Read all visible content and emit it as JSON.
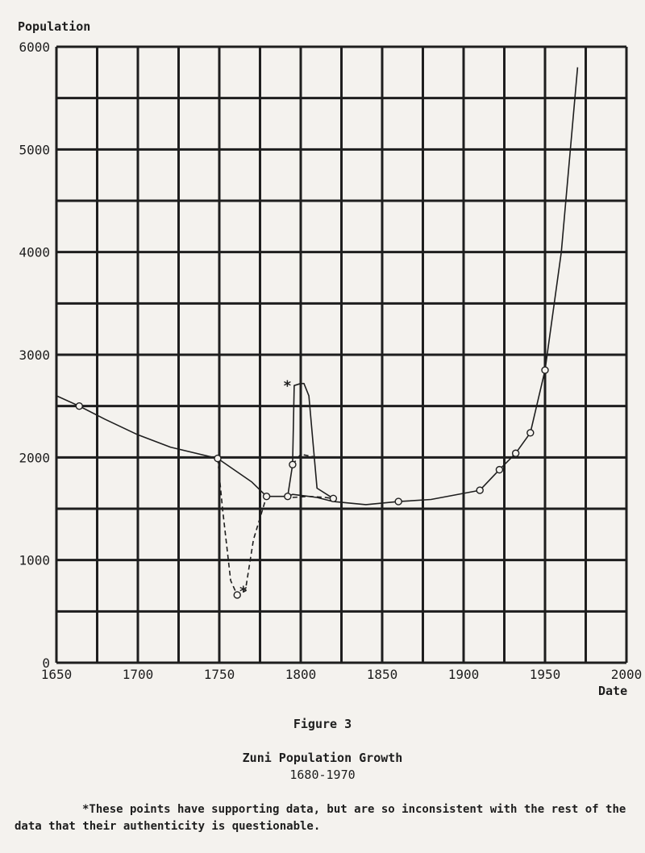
{
  "chart_data": {
    "type": "line",
    "xlabel": "Date",
    "ylabel": "Population",
    "xlim": [
      1650,
      2000
    ],
    "ylim": [
      0,
      6000
    ],
    "x_ticks": [
      1650,
      1700,
      1750,
      1800,
      1850,
      1900,
      1950,
      2000
    ],
    "x_tick_labels": [
      "1650",
      "1700",
      "1750",
      "1800",
      "1850",
      "1900",
      "1950",
      "2000"
    ],
    "y_ticks": [
      0,
      1000,
      2000,
      3000,
      4000,
      5000,
      6000
    ],
    "y_tick_labels": [
      "0",
      "1000",
      "2000",
      "3000",
      "4000",
      "5000",
      "6000"
    ],
    "grid": true,
    "series": [
      {
        "style": "solid",
        "x": [
          1650,
          1664,
          1680,
          1700,
          1720,
          1749,
          1770,
          1779,
          1792,
          1795,
          1810,
          1820,
          1840,
          1860,
          1880,
          1910,
          1922,
          1932,
          1941,
          1950,
          1960,
          1970
        ],
        "y": [
          2600,
          2500,
          2370,
          2220,
          2100,
          1990,
          1760,
          1620,
          1620,
          1640,
          1610,
          1570,
          1540,
          1570,
          1590,
          1680,
          1880,
          2040,
          2240,
          2850,
          4000,
          5800
        ]
      },
      {
        "style": "dashed",
        "x": [
          1749,
          1752,
          1757,
          1761,
          1766,
          1771,
          1779
        ],
        "y": [
          1990,
          1500,
          800,
          660,
          700,
          1200,
          1620
        ]
      },
      {
        "style": "solid",
        "x": [
          1792,
          1795,
          1796,
          1800,
          1802,
          1805,
          1810,
          1820
        ],
        "y": [
          1620,
          1930,
          2700,
          2720,
          2720,
          2600,
          1700,
          1600
        ]
      },
      {
        "style": "dashed",
        "x": [
          1795,
          1800,
          1810
        ],
        "y": [
          1930,
          2030,
          2000
        ]
      },
      {
        "style": "dashed",
        "x": [
          1795,
          1805,
          1815,
          1820
        ],
        "y": [
          1610,
          1620,
          1610,
          1600
        ]
      }
    ],
    "markers": {
      "x": [
        1664,
        1749,
        1761,
        1779,
        1792,
        1795,
        1820,
        1860,
        1910,
        1922,
        1932,
        1941,
        1950
      ],
      "y": [
        2500,
        1990,
        660,
        1620,
        1620,
        1930,
        1600,
        1570,
        1680,
        1880,
        2040,
        2240,
        2850
      ]
    },
    "annotations": [
      {
        "text": "*",
        "x": 1797,
        "y": 2720
      },
      {
        "text": "*",
        "x": 1770,
        "y": 720
      }
    ],
    "figure_label": "Figure 3",
    "title": "Zuni Population Growth",
    "subtitle": "1680-1970",
    "footnote": "*These points have supporting data, but are so inconsistent with the rest of the data that their authenticity is questionable."
  },
  "colors": {
    "ink": "#1e1e1e",
    "paper": "#f4f2ee"
  }
}
